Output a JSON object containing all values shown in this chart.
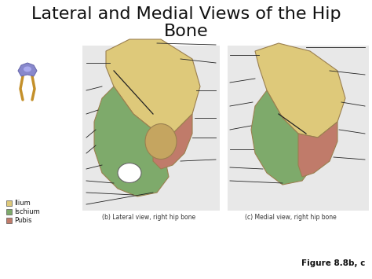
{
  "title_line1": "Lateral and Medial Views of the Hip",
  "title_line2": "Bone",
  "title_fontsize": 16,
  "background_color": "#ffffff",
  "figure_caption": "Figure 8.8b, c",
  "lateral_caption": "(b) Lateral view, right hip bone",
  "medial_caption": "(c) Medial view, right hip bone",
  "legend_items": [
    {
      "label": "Ilium",
      "color": "#DEC97A"
    },
    {
      "label": "Ischium",
      "color": "#7EAA6B"
    },
    {
      "label": "Pubis",
      "color": "#C07B6A"
    }
  ],
  "ilium_color": "#DEC97A",
  "ischium_color": "#7EAA6B",
  "pubis_color": "#C07B6A",
  "bone_edge": "#9B8050",
  "line_color": "#222222",
  "text_color": "#111111",
  "caption_color": "#333333",
  "panel_bg": "#e8e8e8",
  "caption_fontsize": 5.5,
  "legend_fontsize": 6,
  "figure_caption_fontsize": 7.5
}
